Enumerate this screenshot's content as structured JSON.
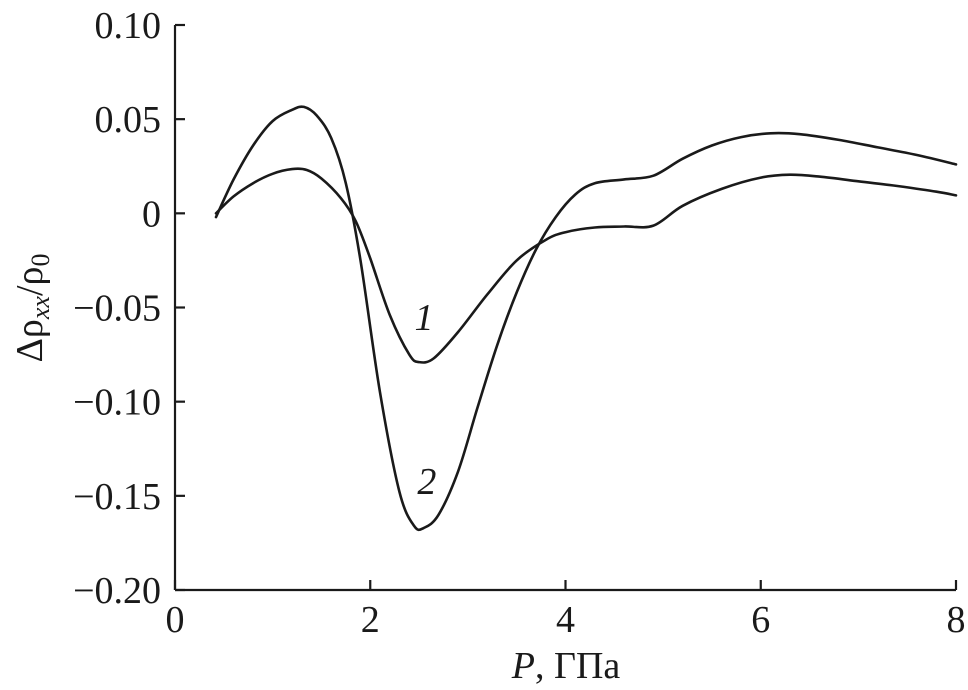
{
  "chart_data": {
    "type": "line",
    "title": "",
    "xlabel": {
      "var": "P",
      "unit": ", ГПа"
    },
    "ylabel": "Δρxx/ρ0",
    "xlim": [
      0,
      8
    ],
    "ylim": [
      -0.2,
      0.1
    ],
    "x_ticks": [
      {
        "value": 0,
        "label": "0"
      },
      {
        "value": 2,
        "label": "2"
      },
      {
        "value": 4,
        "label": "4"
      },
      {
        "value": 6,
        "label": "6"
      },
      {
        "value": 8,
        "label": "8"
      }
    ],
    "y_ticks": [
      {
        "value": 0.1,
        "label": "0.10"
      },
      {
        "value": 0.05,
        "label": "0.05"
      },
      {
        "value": 0,
        "label": "0"
      },
      {
        "value": -0.05,
        "label": "−0.05"
      },
      {
        "value": -0.1,
        "label": "−0.10"
      },
      {
        "value": -0.15,
        "label": "−0.15"
      },
      {
        "value": -0.2,
        "label": "−0.20"
      }
    ],
    "grid": false,
    "series": [
      {
        "label": "1",
        "label_at": [
          2.55,
          -0.062
        ],
        "x": [
          0.42,
          0.6,
          0.8,
          1.0,
          1.2,
          1.35,
          1.5,
          1.7,
          1.85,
          2.0,
          2.2,
          2.4,
          2.5,
          2.65,
          2.9,
          3.2,
          3.5,
          3.8,
          4.0,
          4.3,
          4.6,
          4.9,
          5.2,
          5.6,
          6.0,
          6.3,
          6.6,
          7.0,
          7.4,
          7.8,
          8.0
        ],
        "y": [
          0.0,
          0.009,
          0.016,
          0.021,
          0.0235,
          0.023,
          0.0185,
          0.008,
          -0.004,
          -0.024,
          -0.054,
          -0.075,
          -0.079,
          -0.077,
          -0.063,
          -0.043,
          -0.025,
          -0.014,
          -0.01,
          -0.0075,
          -0.007,
          -0.0065,
          0.004,
          0.013,
          0.019,
          0.0205,
          0.0195,
          0.017,
          0.0145,
          0.0115,
          0.0095
        ]
      },
      {
        "label": "2",
        "label_at": [
          2.58,
          -0.149
        ],
        "x": [
          0.42,
          0.6,
          0.8,
          1.0,
          1.2,
          1.32,
          1.45,
          1.6,
          1.75,
          1.9,
          2.1,
          2.3,
          2.45,
          2.55,
          2.7,
          2.9,
          3.1,
          3.3,
          3.5,
          3.7,
          3.9,
          4.1,
          4.3,
          4.6,
          4.9,
          5.2,
          5.5,
          5.8,
          6.1,
          6.4,
          6.8,
          7.2,
          7.6,
          8.0
        ],
        "y": [
          -0.002,
          0.018,
          0.036,
          0.049,
          0.055,
          0.0565,
          0.052,
          0.04,
          0.016,
          -0.025,
          -0.095,
          -0.148,
          -0.166,
          -0.167,
          -0.16,
          -0.137,
          -0.103,
          -0.07,
          -0.042,
          -0.019,
          -0.002,
          0.01,
          0.016,
          0.018,
          0.02,
          0.029,
          0.036,
          0.0405,
          0.0425,
          0.042,
          0.039,
          0.035,
          0.031,
          0.026
        ]
      }
    ]
  }
}
